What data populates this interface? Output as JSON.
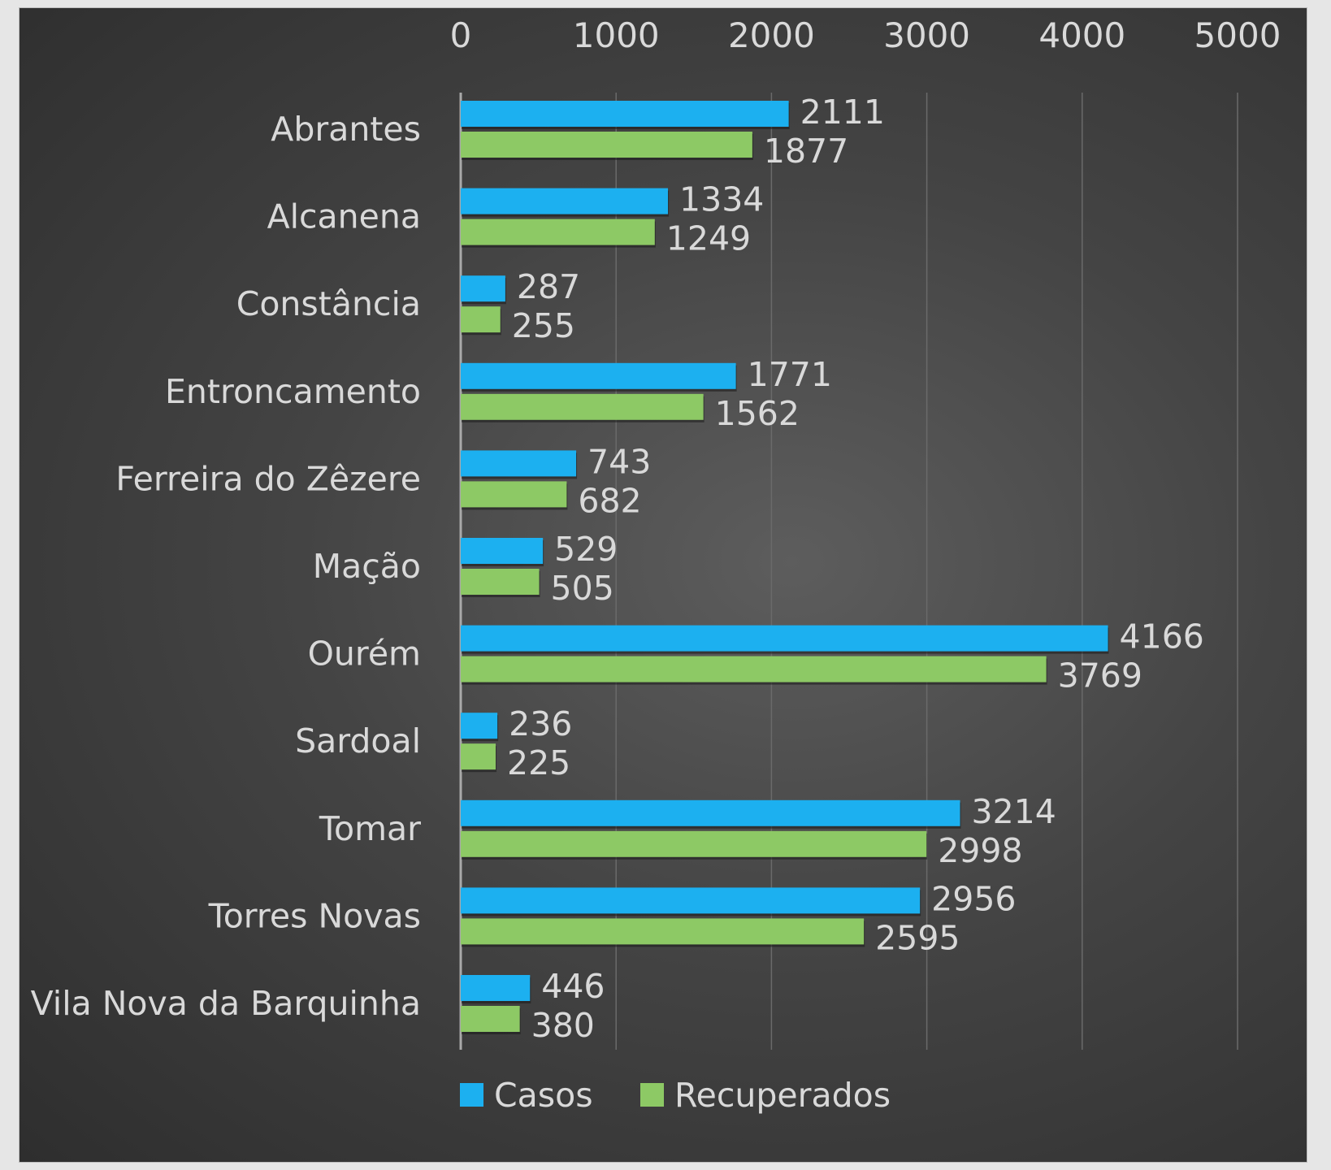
{
  "chart_data": {
    "type": "bar",
    "orientation": "horizontal",
    "categories": [
      "Abrantes",
      "Alcanena",
      "Constância",
      "Entroncamento",
      "Ferreira do Zêzere",
      "Mação",
      "Ourém",
      "Sardoal",
      "Tomar",
      "Torres Novas",
      "Vila Nova da Barquinha"
    ],
    "series": [
      {
        "name": "Casos",
        "color": "#1cb0f0",
        "values": [
          2111,
          1334,
          287,
          1771,
          743,
          529,
          4166,
          236,
          3214,
          2956,
          446
        ]
      },
      {
        "name": "Recuperados",
        "color": "#8dc965",
        "values": [
          1877,
          1249,
          255,
          1562,
          682,
          505,
          3769,
          225,
          2998,
          2595,
          380
        ]
      }
    ],
    "xlim": [
      0,
      5000
    ],
    "x_ticks": [
      "0",
      "1000",
      "2000",
      "3000",
      "4000",
      "5000"
    ],
    "x_axis_position": "top",
    "grid": true,
    "data_labels": true,
    "legend": "bottom",
    "title": "",
    "xlabel": "",
    "ylabel": ""
  }
}
